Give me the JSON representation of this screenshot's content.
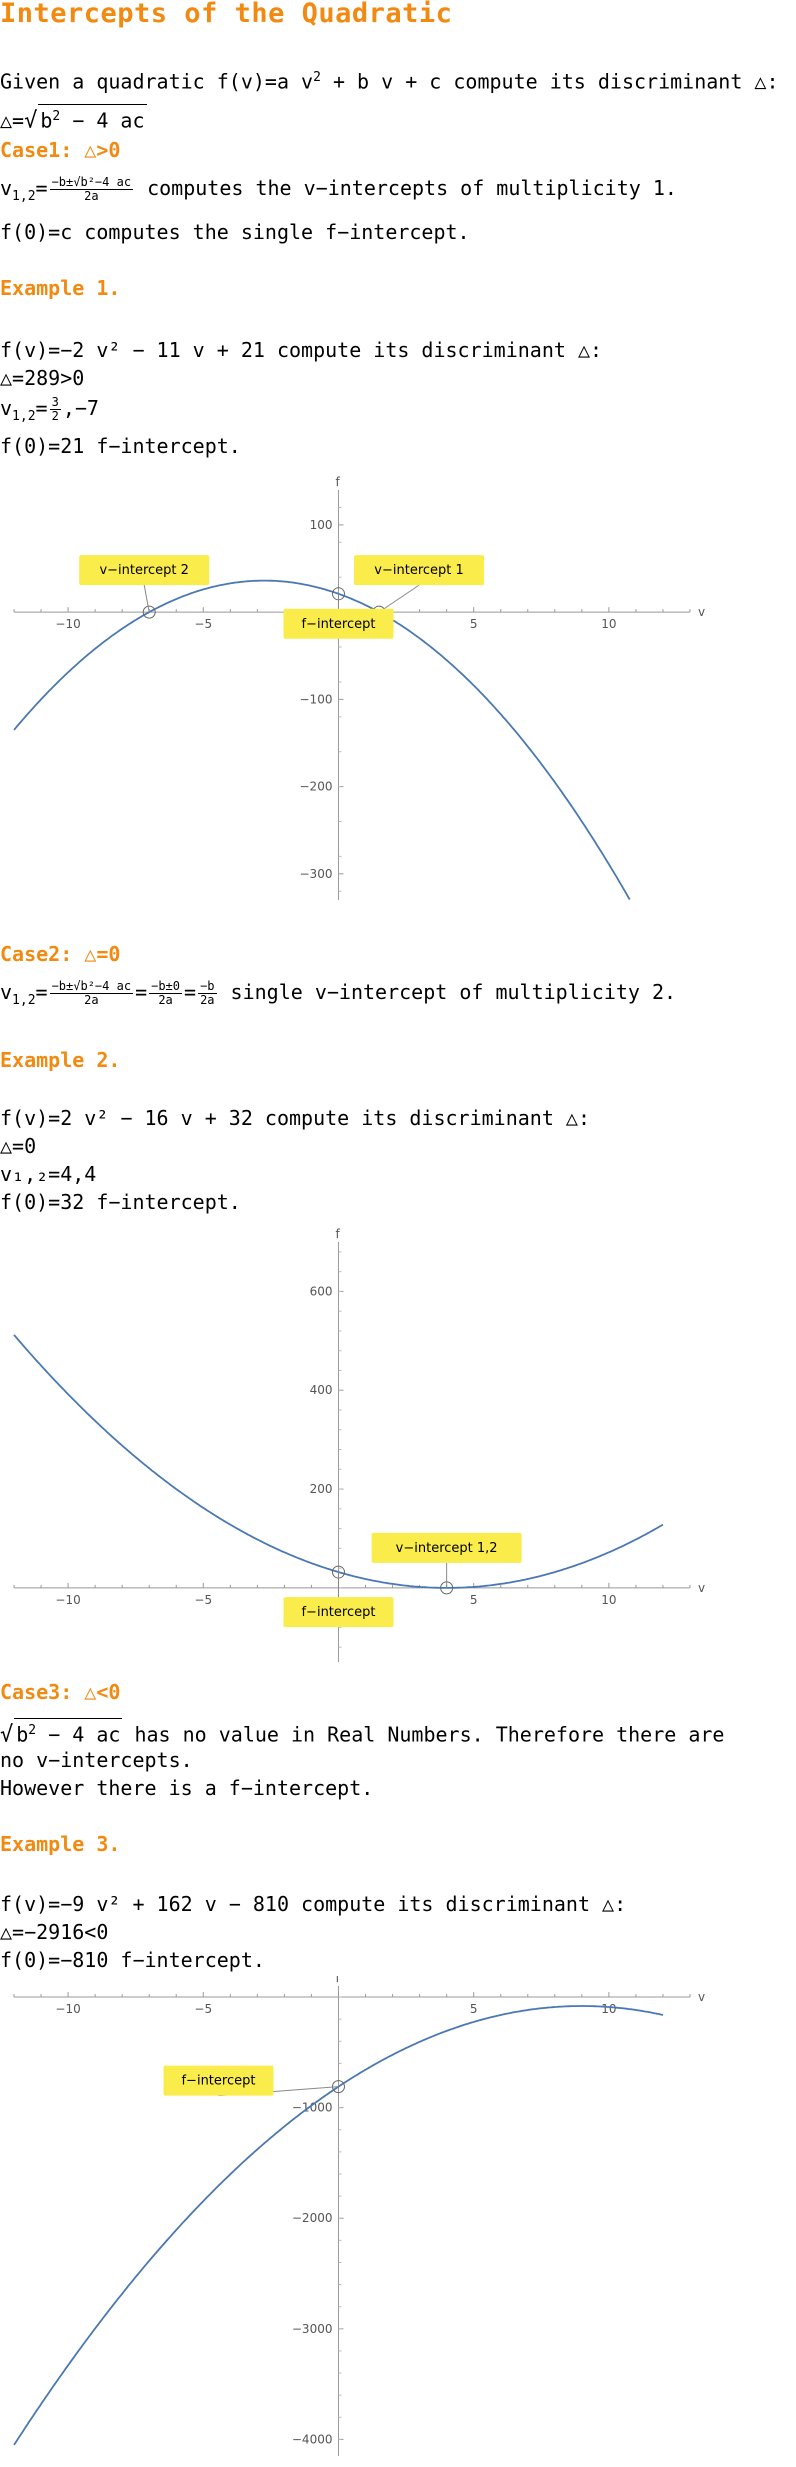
{
  "title": "Intercepts of the Quadratic",
  "intro": {
    "given": "Given a quadratic",
    "fv": "f(v)",
    "eq": "=a v",
    "rest": " + b v + c compute its discriminant △:",
    "disc_lhs": "△=",
    "disc_expr_a": "b",
    "disc_expr_b": " − 4 ac"
  },
  "case1": {
    "heading": "Case1: △>0",
    "v12": "v",
    "v12_sub": "1,2",
    "eq": "=",
    "frac_num": "−b±√b²−4 ac",
    "frac_den": "2a",
    "text": " computes the v−intercepts of multiplicity 1.",
    "f0": "f(0)=c computes the single f−intercept."
  },
  "example1": {
    "heading": "Example 1.",
    "line1": "f(v)=−2 v² − 11 v + 21 compute its discriminant △:",
    "line2": "△=289>0",
    "line3_a": "v",
    "line3_sub": "1,2",
    "line3_b": "=",
    "line3_num": "3",
    "line3_den": "2",
    "line3_c": ",−7",
    "line4": "f(0)=21  f−intercept."
  },
  "case2": {
    "heading": "Case2: △=0",
    "v12": "v",
    "v12_sub": "1,2",
    "num1": "−b±√b²−4 ac",
    "den1": "2a",
    "num2": "−b±0",
    "den2": "2a",
    "num3": "−b",
    "den3": "2a",
    "text": " single v−intercept of multiplicity 2."
  },
  "example2": {
    "heading": "Example 2.",
    "line1": "f(v)=2 v² − 16 v + 32 compute its discriminant △:",
    "line2": "△=0",
    "line3": "v₁,₂=4,4",
    "line4": "f(0)=32  f−intercept."
  },
  "case3": {
    "heading": "Case3: △<0",
    "sqrt_a": "b",
    "sqrt_b": " − 4 ac",
    "text1": " has no value in Real Numbers. Therefore there are",
    "text2": "no v−intercepts.",
    "text3": "However there is a f−intercept."
  },
  "example3": {
    "heading": "Example 3.",
    "line1": "f(v)=−9 v² + 162 v − 810 compute its discriminant △:",
    "line2": "△=−2916<0",
    "line3": "f(0)=−810 f−intercept."
  },
  "colors": {
    "accent": "#f28a12",
    "curve": "#4a78b4",
    "callout_bg": "#faec4a"
  },
  "chart_data": [
    {
      "type": "line",
      "function": "f(v) = -2 v^2 - 11 v + 21",
      "x": [
        -12,
        -11,
        -10,
        -9,
        -8,
        -7,
        -6,
        -5,
        -4,
        -3,
        -2,
        -1,
        0,
        1,
        1.5,
        2,
        3,
        4,
        5,
        6,
        7,
        8,
        9,
        10,
        11
      ],
      "y": [
        -135,
        -100,
        -69,
        -42,
        -19,
        0,
        15,
        26,
        33,
        36,
        35,
        30,
        21,
        8,
        0,
        -9,
        -30,
        -55,
        -84,
        -117,
        -154,
        -195,
        -240,
        -289,
        -342
      ],
      "xlabel": "v",
      "ylabel": "f",
      "xticks": [
        "−10",
        "−5",
        "5",
        "10"
      ],
      "yticks": [
        "100",
        "−100",
        "−200",
        "−300"
      ],
      "xlim": [
        -12,
        13
      ],
      "ylim": [
        -330,
        140
      ],
      "annotations": [
        {
          "label": "v−intercept 2",
          "x": -7,
          "y": 0
        },
        {
          "label": "v−intercept 1",
          "x": 1.5,
          "y": 0
        },
        {
          "label": "f−intercept",
          "x": 0,
          "y": 21
        }
      ]
    },
    {
      "type": "line",
      "function": "f(v) = 2 v^2 - 16 v + 32",
      "x": [
        -12,
        -10,
        -8,
        -6,
        -4,
        -2,
        0,
        2,
        4,
        6,
        8,
        10,
        12
      ],
      "y": [
        512,
        392,
        288,
        200,
        128,
        72,
        32,
        8,
        0,
        8,
        32,
        72,
        128
      ],
      "xlabel": "v",
      "ylabel": "f",
      "xticks": [
        "−10",
        "−5",
        "5",
        "10"
      ],
      "yticks": [
        "200",
        "400",
        "600"
      ],
      "xlim": [
        -12,
        13
      ],
      "ylim": [
        -150,
        700
      ],
      "annotations": [
        {
          "label": "v−intercept 1,2",
          "x": 4,
          "y": 0
        },
        {
          "label": "f−intercept",
          "x": 0,
          "y": 32
        }
      ]
    },
    {
      "type": "line",
      "function": "f(v) = -9 v^2 + 162 v - 810",
      "x": [
        -12,
        -10,
        -8,
        -6,
        -4,
        -2,
        0,
        2,
        4,
        6,
        8,
        9,
        10,
        12
      ],
      "y": [
        -4050,
        -3330,
        -2682,
        -2106,
        -1602,
        -1170,
        -810,
        -522,
        -306,
        -162,
        -90,
        -81,
        -90,
        -162
      ],
      "xlabel": "v",
      "ylabel": "f",
      "xticks": [
        "−10",
        "−5",
        "5",
        "10"
      ],
      "yticks": [
        "−1000",
        "−2000",
        "−3000",
        "−4000"
      ],
      "xlim": [
        -12,
        13
      ],
      "ylim": [
        -4150,
        100
      ],
      "annotations": [
        {
          "label": "f−intercept",
          "x": 0,
          "y": -810
        }
      ]
    }
  ]
}
